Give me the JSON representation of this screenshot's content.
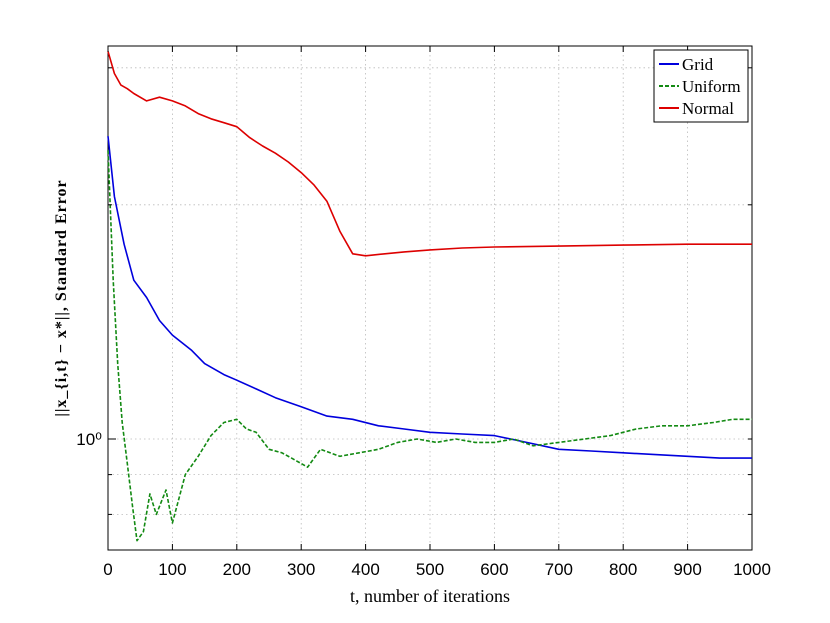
{
  "chart_data": {
    "type": "line",
    "xlabel": "t, number of iterations",
    "ylabel": "||x_{i,t} − x*||, Standard Error",
    "xlim": [
      0,
      1000
    ],
    "ylim": [
      0.72,
      3.2
    ],
    "yscale": "log",
    "x_ticks": [
      "0",
      "100",
      "200",
      "300",
      "400",
      "500",
      "600",
      "700",
      "800",
      "900",
      "1000"
    ],
    "y_ticks": [
      {
        "value": 1.0,
        "label": "10⁰"
      }
    ],
    "grid": true,
    "legend_position": "top-right",
    "series": [
      {
        "name": "Grid",
        "color": "#0000dd",
        "style": "solid",
        "points": [
          [
            0,
            2.45
          ],
          [
            10,
            2.05
          ],
          [
            25,
            1.78
          ],
          [
            40,
            1.6
          ],
          [
            60,
            1.52
          ],
          [
            80,
            1.42
          ],
          [
            100,
            1.36
          ],
          [
            130,
            1.3
          ],
          [
            150,
            1.25
          ],
          [
            180,
            1.21
          ],
          [
            200,
            1.19
          ],
          [
            230,
            1.16
          ],
          [
            260,
            1.13
          ],
          [
            300,
            1.1
          ],
          [
            340,
            1.07
          ],
          [
            380,
            1.06
          ],
          [
            420,
            1.04
          ],
          [
            460,
            1.03
          ],
          [
            500,
            1.02
          ],
          [
            550,
            1.015
          ],
          [
            600,
            1.01
          ],
          [
            650,
            0.99
          ],
          [
            700,
            0.97
          ],
          [
            750,
            0.965
          ],
          [
            800,
            0.96
          ],
          [
            850,
            0.955
          ],
          [
            900,
            0.95
          ],
          [
            950,
            0.945
          ],
          [
            1000,
            0.945
          ]
        ]
      },
      {
        "name": "Uniform",
        "color": "#138a13",
        "style": "dashed",
        "points": [
          [
            0,
            2.35
          ],
          [
            8,
            1.6
          ],
          [
            15,
            1.25
          ],
          [
            22,
            1.05
          ],
          [
            30,
            0.93
          ],
          [
            38,
            0.82
          ],
          [
            45,
            0.74
          ],
          [
            55,
            0.76
          ],
          [
            65,
            0.85
          ],
          [
            75,
            0.8
          ],
          [
            90,
            0.86
          ],
          [
            100,
            0.78
          ],
          [
            120,
            0.9
          ],
          [
            140,
            0.95
          ],
          [
            160,
            1.01
          ],
          [
            180,
            1.05
          ],
          [
            200,
            1.06
          ],
          [
            215,
            1.03
          ],
          [
            230,
            1.02
          ],
          [
            250,
            0.97
          ],
          [
            270,
            0.96
          ],
          [
            290,
            0.94
          ],
          [
            310,
            0.92
          ],
          [
            330,
            0.97
          ],
          [
            360,
            0.95
          ],
          [
            390,
            0.96
          ],
          [
            420,
            0.97
          ],
          [
            450,
            0.99
          ],
          [
            480,
            1.0
          ],
          [
            510,
            0.99
          ],
          [
            540,
            1.0
          ],
          [
            570,
            0.99
          ],
          [
            600,
            0.99
          ],
          [
            630,
            1.0
          ],
          [
            660,
            0.98
          ],
          [
            700,
            0.99
          ],
          [
            740,
            1.0
          ],
          [
            780,
            1.01
          ],
          [
            820,
            1.03
          ],
          [
            860,
            1.04
          ],
          [
            900,
            1.04
          ],
          [
            940,
            1.05
          ],
          [
            970,
            1.06
          ],
          [
            1000,
            1.06
          ]
        ]
      },
      {
        "name": "Normal",
        "color": "#dd0000",
        "style": "solid",
        "points": [
          [
            0,
            3.15
          ],
          [
            10,
            2.95
          ],
          [
            20,
            2.85
          ],
          [
            30,
            2.82
          ],
          [
            40,
            2.78
          ],
          [
            60,
            2.72
          ],
          [
            80,
            2.75
          ],
          [
            100,
            2.72
          ],
          [
            120,
            2.68
          ],
          [
            140,
            2.62
          ],
          [
            160,
            2.58
          ],
          [
            180,
            2.55
          ],
          [
            200,
            2.52
          ],
          [
            210,
            2.48
          ],
          [
            220,
            2.44
          ],
          [
            240,
            2.38
          ],
          [
            260,
            2.33
          ],
          [
            280,
            2.27
          ],
          [
            300,
            2.2
          ],
          [
            320,
            2.12
          ],
          [
            340,
            2.02
          ],
          [
            360,
            1.85
          ],
          [
            380,
            1.73
          ],
          [
            400,
            1.72
          ],
          [
            430,
            1.73
          ],
          [
            460,
            1.74
          ],
          [
            500,
            1.75
          ],
          [
            550,
            1.76
          ],
          [
            600,
            1.765
          ],
          [
            700,
            1.77
          ],
          [
            800,
            1.775
          ],
          [
            900,
            1.78
          ],
          [
            1000,
            1.78
          ]
        ]
      }
    ]
  }
}
